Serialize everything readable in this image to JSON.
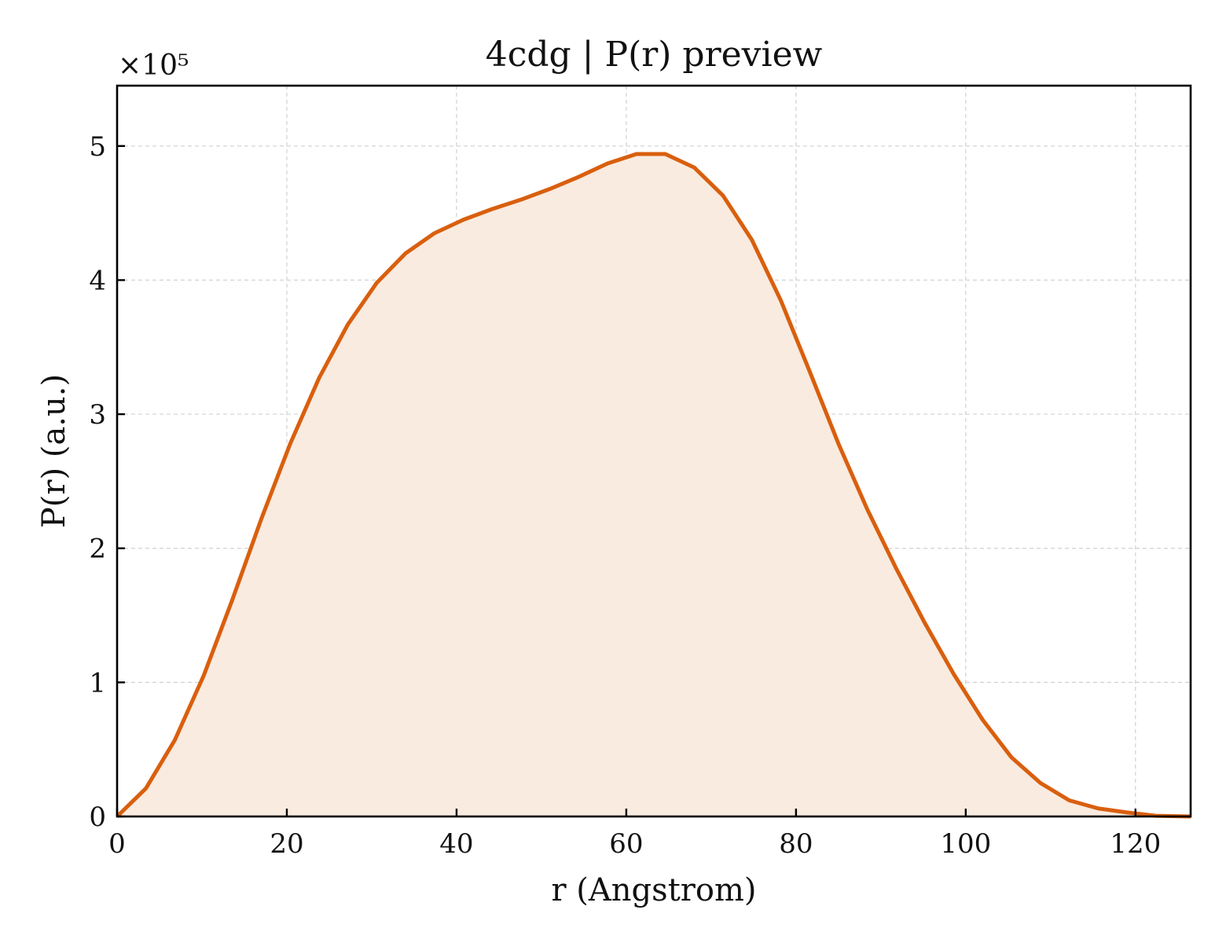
{
  "chart_data": {
    "type": "area",
    "title": "4cdg | P(r) preview",
    "xlabel": "r (Angstrom)",
    "ylabel": "P(r) (a.u.)",
    "y_offset_label": "×10⁵",
    "xlim": [
      0,
      126.5
    ],
    "ylim": [
      0,
      5.45
    ],
    "x_ticks": [
      0,
      20,
      40,
      60,
      80,
      100,
      120
    ],
    "x_tick_labels": [
      "0",
      "20",
      "40",
      "60",
      "80",
      "100",
      "120"
    ],
    "y_ticks": [
      0,
      1,
      2,
      3,
      4,
      5
    ],
    "y_tick_labels": [
      "0",
      "1",
      "2",
      "3",
      "4",
      "5"
    ],
    "grid": true,
    "colors": {
      "line": "#d95f0e",
      "fill": "#f9ebe0"
    },
    "series": [
      {
        "x": [
          0,
          3.4,
          6.8,
          10.2,
          13.6,
          17.0,
          20.4,
          23.8,
          27.2,
          30.6,
          34.0,
          37.4,
          40.8,
          44.2,
          47.6,
          51.0,
          54.4,
          57.8,
          61.2,
          64.6,
          68.0,
          71.4,
          74.8,
          78.2,
          81.6,
          85.0,
          88.4,
          91.8,
          95.2,
          98.6,
          102.0,
          105.4,
          108.8,
          112.2,
          115.6,
          119.0,
          122.4,
          126.5
        ],
        "y": [
          0.0,
          0.21,
          0.57,
          1.05,
          1.62,
          2.22,
          2.78,
          3.27,
          3.67,
          3.98,
          4.2,
          4.35,
          4.45,
          4.53,
          4.6,
          4.68,
          4.77,
          4.87,
          4.94,
          4.94,
          4.84,
          4.63,
          4.3,
          3.85,
          3.32,
          2.78,
          2.29,
          1.85,
          1.44,
          1.06,
          0.72,
          0.44,
          0.25,
          0.12,
          0.06,
          0.03,
          0.005,
          0.0
        ]
      }
    ]
  }
}
